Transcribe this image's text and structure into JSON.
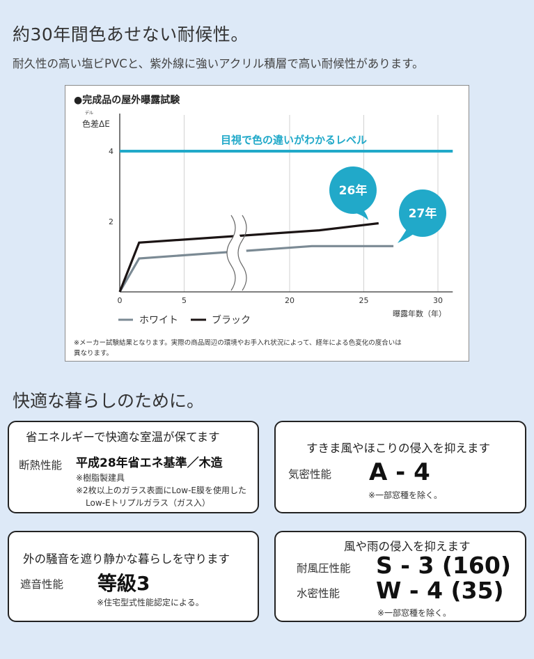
{
  "header": {
    "title": "約30年間色あせない耐候性。",
    "subtitle": "耐久性の高い塩ビPVCと、紫外線に強いアクリル積層で高い耐候性があります。"
  },
  "chart": {
    "title": "●完成品の屋外曝露試験",
    "ylabel": "色差ΔE",
    "ylabel_ruby": "デル",
    "xlabel": "曝露年数（年）",
    "threshold_label": "目視で色の違いがわかるレベル",
    "bubble_black": "26年",
    "bubble_white": "27年",
    "legend_white": "ホワイト",
    "legend_black": "ブラック",
    "footnote_line1": "※メーカー試験結果となります。実際の商品周辺の環境やお手入れ状況によって、経年による色変化の度合いは",
    "footnote_line2": "異なります。"
  },
  "chart_data": {
    "type": "line",
    "title": "完成品の屋外曝露試験",
    "xlabel": "曝露年数（年）",
    "ylabel": "色差ΔE",
    "xlim": [
      0,
      31
    ],
    "ylim": [
      0,
      4.6
    ],
    "xticks": [
      0,
      5,
      20,
      25,
      30
    ],
    "yticks": [
      2,
      4
    ],
    "axis_break": "between 5 and 20",
    "grid": true,
    "legend": "bottom-left",
    "threshold": {
      "value": 4,
      "label": "目視で色の違いがわかるレベル",
      "color": "#21a9c9"
    },
    "series": [
      {
        "name": "ホワイト",
        "color": "#7b8a94",
        "x": [
          0,
          1.5,
          21.5,
          23,
          27
        ],
        "y": [
          0,
          0.95,
          1.3,
          1.3,
          1.3
        ]
      },
      {
        "name": "ブラック",
        "color": "#1b1414",
        "x": [
          0,
          1.5,
          22,
          26
        ],
        "y": [
          0,
          1.4,
          1.75,
          1.95
        ]
      }
    ],
    "annotations": [
      "26年",
      "27年"
    ]
  },
  "section2": {
    "title": "快適な暮らしのために。"
  },
  "cards": {
    "insulation": {
      "heading": "省エネルギーで快適な室温が保てます",
      "label": "断熱性能",
      "value": "平成28年省エネ基準／木造",
      "note1": "※樹脂製建具",
      "note2": "※2枚以上のガラス表面にLow-E膜を使用した",
      "note3": "Low-Eトリプルガラス（ガス入）",
      "border_color": "#f0a040"
    },
    "airtight": {
      "heading": "すきま風やほこりの侵入を抑えます",
      "label": "気密性能",
      "value": "A - 4",
      "note": "※一部窓種を除く。",
      "border_color": "#79c14f"
    },
    "sound": {
      "heading": "外の騒音を遮り静かな暮らしを守ります",
      "label": "遮音性能",
      "value": "等級3",
      "note": "※住宅型式性能認定による。",
      "border_color": "#8ed0d8"
    },
    "wind": {
      "heading": "風や雨の侵入を抑えます",
      "label1": "耐風圧性能",
      "value1": "S - 3 (160)",
      "label2": "水密性能",
      "value2": "W - 4 (35)",
      "note": "※一部窓種を除く。",
      "border_color": "#9a78b5"
    }
  }
}
